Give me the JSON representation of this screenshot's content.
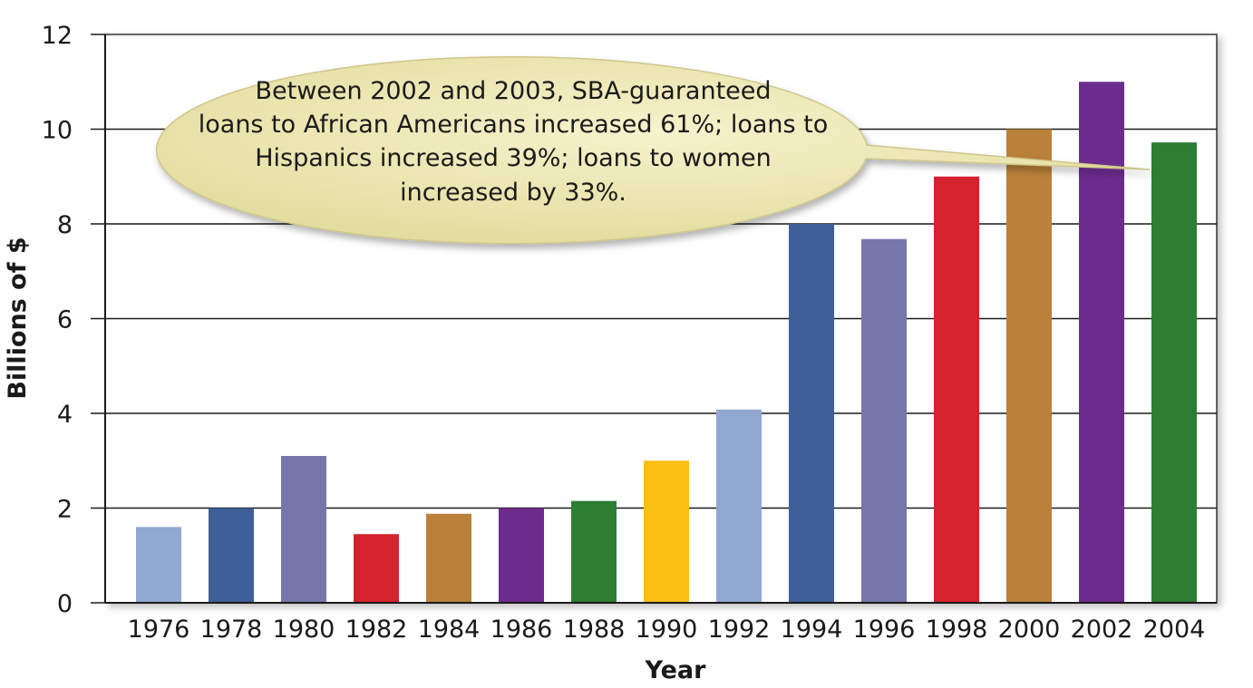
{
  "chart_data": {
    "type": "bar",
    "categories": [
      "1976",
      "1978",
      "1980",
      "1982",
      "1984",
      "1986",
      "1988",
      "1990",
      "1992",
      "1994",
      "1996",
      "1998",
      "2000",
      "2002",
      "2004"
    ],
    "values": [
      1.6,
      2.0,
      3.1,
      1.45,
      1.88,
      2.0,
      2.15,
      3.0,
      4.08,
      8.0,
      7.68,
      9.0,
      10.0,
      11.0,
      9.72
    ],
    "bar_colors": [
      "#91a8d0",
      "#3e5f97",
      "#7677a9",
      "#d4232d",
      "#ba813b",
      "#6c2c8d",
      "#2d7d32",
      "#fbbe12",
      "#91a8d0",
      "#3e5f97",
      "#7677a9",
      "#d4232d",
      "#ba813b",
      "#6c2c8d",
      "#2d7d32"
    ],
    "xlabel": "Year",
    "ylabel": "Billions of $",
    "ylim": [
      0,
      12
    ],
    "yticks": [
      "0",
      "2",
      "4",
      "6",
      "8",
      "10",
      "12"
    ],
    "grid": true,
    "annotation": {
      "lines": [
        "Between 2002 and 2003, SBA-guaranteed",
        "loans to African Americans increased 61%; loans to",
        "Hispanics increased 39%; loans to women",
        "increased by 33%."
      ],
      "points_to": "2004",
      "fill_color": "#ede7b4"
    }
  }
}
